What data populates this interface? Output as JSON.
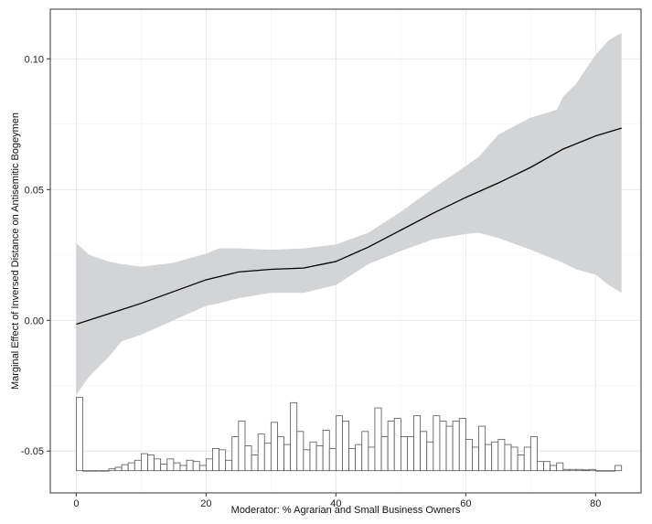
{
  "chart_data": {
    "type": "line",
    "title": "",
    "xlabel": "Moderator: % Agrarian and Small Business Owners",
    "ylabel": "Marginal Effect of Inversed Distance on Antisemitic Bogeymen",
    "xlim": [
      -4,
      87
    ],
    "ylim": [
      -0.066,
      0.119
    ],
    "grid": true,
    "legend": "none",
    "x_ticks": [
      {
        "value": 0,
        "label": "0"
      },
      {
        "value": 20,
        "label": "20"
      },
      {
        "value": 40,
        "label": "40"
      },
      {
        "value": 60,
        "label": "60"
      },
      {
        "value": 80,
        "label": "80"
      }
    ],
    "y_ticks": [
      {
        "value": -0.05,
        "label": "-0.05"
      },
      {
        "value": 0.0,
        "label": "0.00"
      },
      {
        "value": 0.05,
        "label": "0.05"
      },
      {
        "value": 0.1,
        "label": "0.10"
      }
    ],
    "series": [
      {
        "type": "line",
        "color": "#000000",
        "x": [
          0,
          5,
          10,
          15,
          20,
          25,
          30,
          35,
          40,
          45,
          50,
          55,
          60,
          65,
          70,
          75,
          80,
          84
        ],
        "y": [
          -0.0015,
          0.0025,
          0.0065,
          0.011,
          0.0155,
          0.0185,
          0.0195,
          0.02,
          0.0225,
          0.028,
          0.0345,
          0.041,
          0.047,
          0.0525,
          0.0585,
          0.0655,
          0.0705,
          0.0735
        ]
      },
      {
        "type": "band",
        "color": "#d3d4d6",
        "x": [
          0,
          2,
          5,
          7,
          10,
          15,
          20,
          22,
          25,
          30,
          35,
          40,
          45,
          50,
          55,
          60,
          62,
          65,
          70,
          74,
          75,
          77,
          80,
          82,
          84
        ],
        "upper": [
          0.0295,
          0.025,
          0.0225,
          0.0215,
          0.0205,
          0.022,
          0.0255,
          0.0275,
          0.0275,
          0.027,
          0.0275,
          0.029,
          0.0335,
          0.0415,
          0.0505,
          0.059,
          0.0625,
          0.071,
          0.0775,
          0.0805,
          0.0855,
          0.0905,
          0.1015,
          0.107,
          0.11
        ],
        "lower": [
          -0.0285,
          -0.0215,
          -0.014,
          -0.008,
          -0.0055,
          0.0,
          0.0055,
          0.0065,
          0.0085,
          0.0105,
          0.0105,
          0.0135,
          0.0215,
          0.0265,
          0.031,
          0.033,
          0.0335,
          0.0315,
          0.027,
          0.023,
          0.022,
          0.0195,
          0.0175,
          0.0135,
          0.0105
        ]
      }
    ],
    "histogram": {
      "color": "#ffffff",
      "edge": "#555555",
      "baseline": -0.0575,
      "bin_width": 1,
      "x": [
        0,
        1,
        2,
        3,
        4,
        5,
        6,
        7,
        8,
        9,
        10,
        11,
        12,
        13,
        14,
        15,
        16,
        17,
        18,
        19,
        20,
        21,
        22,
        23,
        24,
        25,
        26,
        27,
        28,
        29,
        30,
        31,
        32,
        33,
        34,
        35,
        36,
        37,
        38,
        39,
        40,
        41,
        42,
        43,
        44,
        45,
        46,
        47,
        48,
        49,
        50,
        51,
        52,
        53,
        54,
        55,
        56,
        57,
        58,
        59,
        60,
        61,
        62,
        63,
        64,
        65,
        66,
        67,
        68,
        69,
        70,
        71,
        72,
        73,
        74,
        75,
        76,
        77,
        78,
        79,
        80,
        81,
        82,
        83
      ],
      "y": [
        -0.0295,
        -0.0575,
        -0.0575,
        -0.0575,
        -0.0575,
        -0.0568,
        -0.0562,
        -0.0552,
        -0.0545,
        -0.0535,
        -0.051,
        -0.0515,
        -0.053,
        -0.055,
        -0.053,
        -0.0545,
        -0.0555,
        -0.0535,
        -0.054,
        -0.0555,
        -0.053,
        -0.049,
        -0.0495,
        -0.0535,
        -0.0445,
        -0.0385,
        -0.048,
        -0.0515,
        -0.0435,
        -0.047,
        -0.039,
        -0.0445,
        -0.0475,
        -0.0315,
        -0.0425,
        -0.0495,
        -0.0465,
        -0.048,
        -0.042,
        -0.049,
        -0.0365,
        -0.0385,
        -0.049,
        -0.0475,
        -0.0425,
        -0.0485,
        -0.0335,
        -0.0445,
        -0.0385,
        -0.0375,
        -0.0445,
        -0.0445,
        -0.0365,
        -0.0425,
        -0.0465,
        -0.0365,
        -0.0385,
        -0.0405,
        -0.0385,
        -0.0375,
        -0.0455,
        -0.0485,
        -0.0405,
        -0.0475,
        -0.0465,
        -0.0455,
        -0.0475,
        -0.0485,
        -0.0515,
        -0.0485,
        -0.0445,
        -0.054,
        -0.054,
        -0.0555,
        -0.0545,
        -0.057,
        -0.057,
        -0.057,
        -0.0572,
        -0.057,
        -0.0575,
        -0.0575,
        -0.0575,
        -0.0555
      ]
    }
  }
}
